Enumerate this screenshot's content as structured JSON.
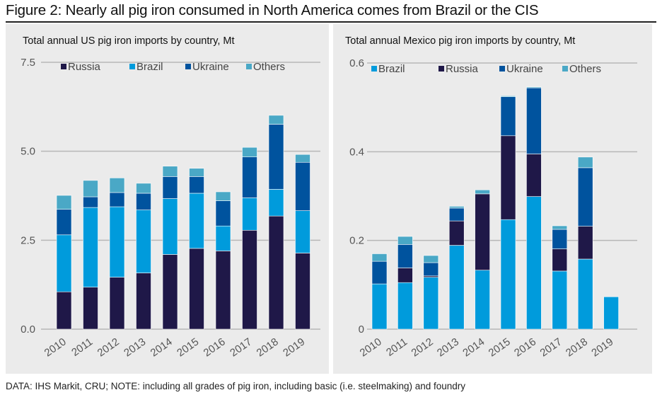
{
  "figure": {
    "title": "Figure 2: Nearly all pig iron consumed in North America comes from Brazil or the CIS",
    "footer": "DATA: IHS Markit, CRU;  NOTE: including all grades of pig iron, including basic (i.e. steelmaking) and foundry"
  },
  "colors": {
    "Russia": "#1f1848",
    "Brazil": "#009bdc",
    "Ukraine": "#00539e",
    "Others": "#4aa8c6",
    "gridline": "#b7b7b7",
    "panel_bg": "#ebebeb"
  },
  "chart_data": [
    {
      "type": "bar",
      "stacked": true,
      "title": "Total annual US pig iron imports by country, Mt",
      "xlabel": "",
      "ylabel": "",
      "ylim": [
        0,
        7.5
      ],
      "yticks": [
        0,
        2.5,
        5.0,
        7.5
      ],
      "ytick_labels": [
        "0.0",
        "2.5",
        "5.0",
        "7.5"
      ],
      "grid": true,
      "legend_position": "top",
      "legend": [
        "Russia",
        "Brazil",
        "Ukraine",
        "Others"
      ],
      "categories": [
        "2010",
        "2011",
        "2012",
        "2013",
        "2014",
        "2015",
        "2016",
        "2017",
        "2018",
        "2019"
      ],
      "series": [
        {
          "name": "Russia",
          "values": [
            1.05,
            1.18,
            1.46,
            1.58,
            2.1,
            2.27,
            2.2,
            2.78,
            3.18,
            2.14
          ]
        },
        {
          "name": "Brazil",
          "values": [
            1.6,
            2.24,
            1.98,
            1.77,
            1.57,
            1.55,
            0.7,
            0.91,
            0.75,
            1.19
          ]
        },
        {
          "name": "Ukraine",
          "values": [
            0.72,
            0.3,
            0.4,
            0.47,
            0.62,
            0.47,
            0.71,
            1.15,
            1.83,
            1.36
          ]
        },
        {
          "name": "Others",
          "values": [
            0.39,
            0.46,
            0.41,
            0.28,
            0.29,
            0.23,
            0.25,
            0.27,
            0.25,
            0.22
          ]
        }
      ]
    },
    {
      "type": "bar",
      "stacked": true,
      "title": "Total annual Mexico pig iron imports by country, Mt",
      "xlabel": "",
      "ylabel": "",
      "ylim": [
        0,
        0.6
      ],
      "yticks": [
        0,
        0.2,
        0.4,
        0.6
      ],
      "ytick_labels": [
        "0",
        "0.2",
        "0.4",
        "0.6"
      ],
      "grid": true,
      "legend_position": "top",
      "legend": [
        "Brazil",
        "Russia",
        "Ukraine",
        "Others"
      ],
      "categories": [
        "2010",
        "2011",
        "2012",
        "2013",
        "2014",
        "2015",
        "2016",
        "2017",
        "2018",
        "2019"
      ],
      "series": [
        {
          "name": "Brazil",
          "values": [
            0.102,
            0.105,
            0.117,
            0.189,
            0.133,
            0.247,
            0.299,
            0.131,
            0.158,
            0.073
          ]
        },
        {
          "name": "Russia",
          "values": [
            0.0,
            0.033,
            0.003,
            0.055,
            0.172,
            0.189,
            0.096,
            0.05,
            0.074,
            0.0
          ]
        },
        {
          "name": "Ukraine",
          "values": [
            0.051,
            0.053,
            0.03,
            0.029,
            0.0,
            0.088,
            0.149,
            0.044,
            0.132,
            0.0
          ]
        },
        {
          "name": "Others",
          "values": [
            0.017,
            0.018,
            0.016,
            0.004,
            0.009,
            0.002,
            0.002,
            0.008,
            0.024,
            0.0
          ]
        }
      ]
    }
  ]
}
